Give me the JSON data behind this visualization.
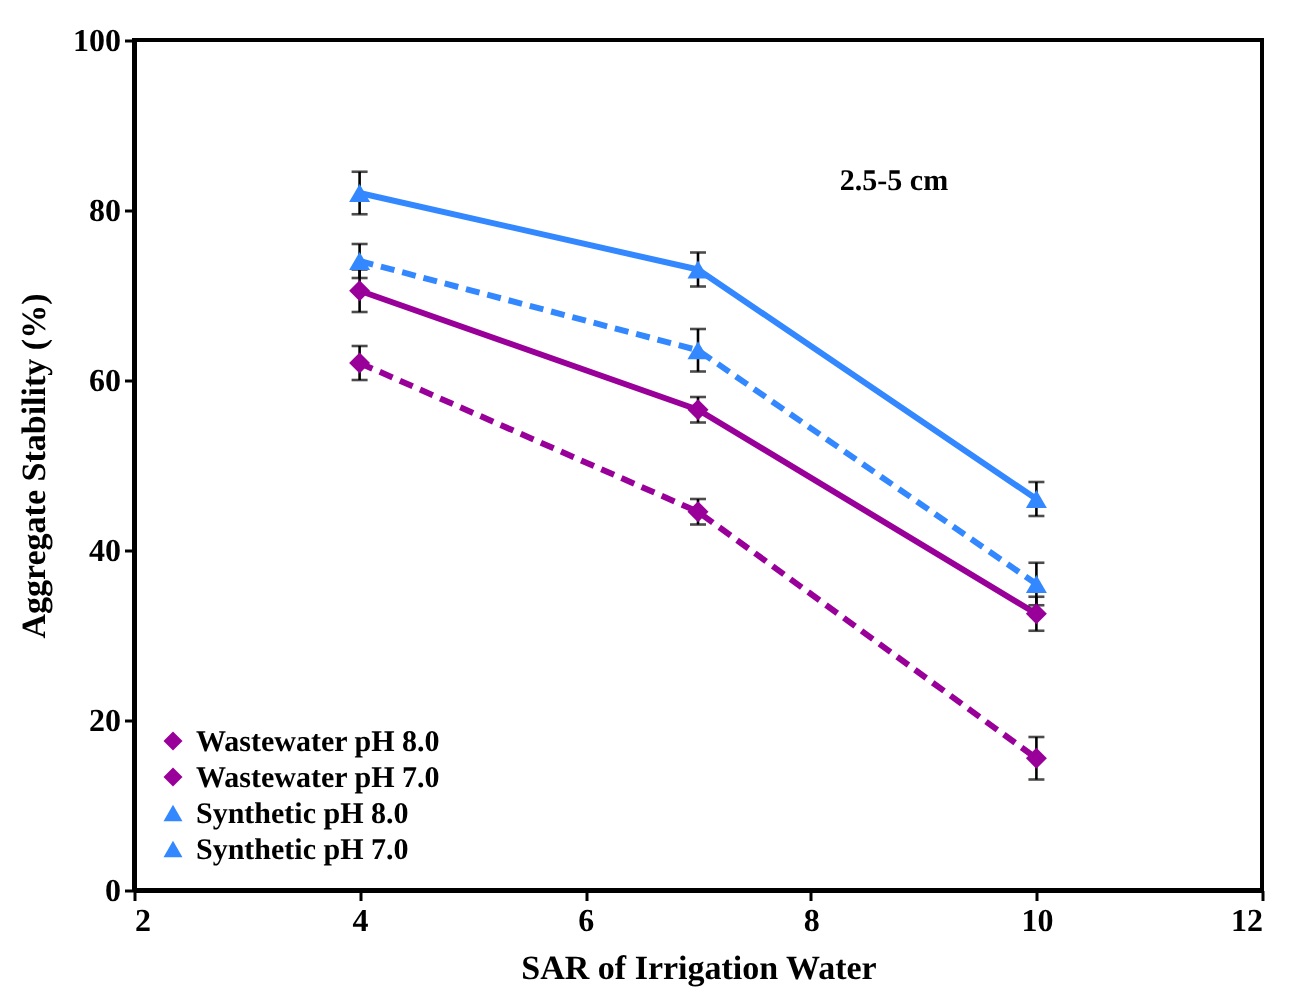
{
  "chart_data": {
    "type": "line",
    "xlabel": "SAR of Irrigation Water",
    "ylabel": "Aggregate Stability (%)",
    "x": [
      4,
      7,
      10
    ],
    "xlim": [
      2,
      12
    ],
    "xticks": [
      2,
      4,
      6,
      8,
      10,
      12
    ],
    "ylim": [
      0,
      100
    ],
    "yticks": [
      0,
      20,
      40,
      60,
      80,
      100
    ],
    "grid": false,
    "legend": "bottom left",
    "annotations": [
      "2.5-5 cm"
    ],
    "series": [
      {
        "name": "Wastewater pH 8.0",
        "color": "#990099",
        "line_style": "dashed",
        "marker": "diamond",
        "values": [
          62,
          44.5,
          15.5
        ],
        "errors": [
          2,
          1.5,
          2.5
        ]
      },
      {
        "name": "Wastewater pH 7.0",
        "color": "#990099",
        "line_style": "solid",
        "marker": "diamond",
        "values": [
          70.5,
          56.5,
          32.5
        ],
        "errors": [
          2.5,
          1.5,
          2
        ]
      },
      {
        "name": "Synthetic pH 8.0",
        "color": "#3388ff",
        "line_style": "dashed",
        "marker": "triangle",
        "values": [
          74,
          63.5,
          36
        ],
        "errors": [
          2,
          2.5,
          2.5
        ]
      },
      {
        "name": "Synthetic pH 7.0",
        "color": "#3388ff",
        "line_style": "solid",
        "marker": "triangle",
        "values": [
          82,
          73,
          46
        ],
        "errors": [
          2.5,
          2,
          2
        ]
      }
    ]
  }
}
